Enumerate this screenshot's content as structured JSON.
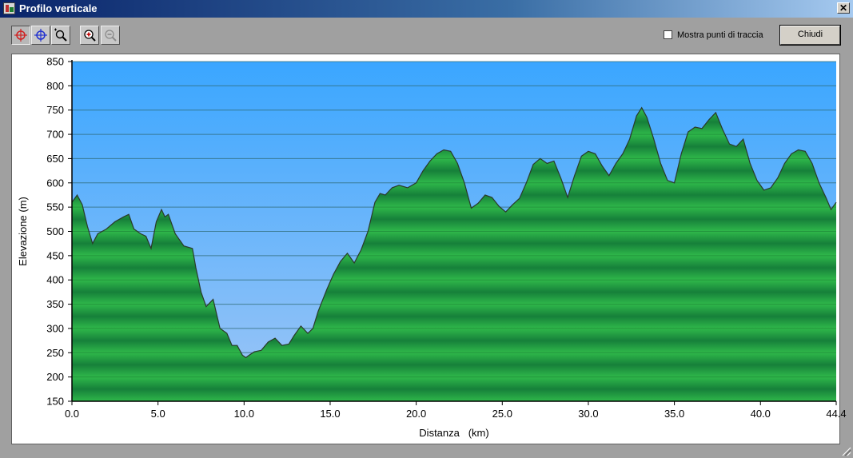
{
  "window": {
    "title": "Profilo verticale",
    "close_glyph": "✕"
  },
  "toolbar": {
    "tools": [
      {
        "name": "cursor-red-crosshair-icon",
        "pressed": true
      },
      {
        "name": "cursor-blue-crosshair-icon",
        "pressed": false
      },
      {
        "name": "zoom-window-icon",
        "pressed": false
      },
      {
        "name": "zoom-in-icon",
        "pressed": false
      },
      {
        "name": "zoom-out-icon",
        "pressed": false,
        "disabled": true
      }
    ],
    "checkbox_label": "Mostra punti di traccia",
    "checkbox_checked": false,
    "close_label": "Chiudi"
  },
  "colors": {
    "sky_top": "#3aa6ff",
    "sky_bottom": "#9ec6f6",
    "terrain_light": "#2fb84a",
    "terrain_dark": "#16803a",
    "outline": "#2a3a2a"
  },
  "chart_data": {
    "type": "area",
    "xlabel": "Distanza   (km)",
    "ylabel": "Elevazione (m)",
    "xlim": [
      0,
      44.4
    ],
    "ylim": [
      150,
      850
    ],
    "xticks": [
      0,
      5,
      10,
      15,
      20,
      25,
      30,
      35,
      40,
      44.4
    ],
    "xtick_labels": [
      "0.0",
      "5.0",
      "10.0",
      "15.0",
      "20.0",
      "25.0",
      "30.0",
      "35.0",
      "40.0",
      "44.4"
    ],
    "yticks": [
      150,
      200,
      250,
      300,
      350,
      400,
      450,
      500,
      550,
      600,
      650,
      700,
      750,
      800,
      850
    ],
    "grid": true,
    "series": [
      {
        "x": [
          0,
          0.3,
          0.6,
          0.9,
          1.2,
          1.5,
          2.0,
          2.5,
          3.0,
          3.3,
          3.6,
          4.0,
          4.3,
          4.6,
          4.9,
          5.2,
          5.4,
          5.6,
          6.0,
          6.5,
          7.0,
          7.2,
          7.5,
          7.8,
          8.2,
          8.6,
          9.0,
          9.3,
          9.6,
          9.9,
          10.1,
          10.3,
          10.6,
          11.0,
          11.4,
          11.8,
          12.2,
          12.6,
          12.9,
          13.3,
          13.7,
          14.0,
          14.3,
          14.8,
          15.2,
          15.6,
          16.0,
          16.4,
          16.8,
          17.2,
          17.6,
          17.9,
          18.2,
          18.6,
          19.0,
          19.5,
          20.0,
          20.4,
          20.8,
          21.2,
          21.6,
          22.0,
          22.4,
          22.8,
          23.2,
          23.6,
          24.0,
          24.4,
          24.8,
          25.2,
          25.6,
          26.0,
          26.4,
          26.8,
          27.2,
          27.6,
          28.0,
          28.4,
          28.8,
          29.2,
          29.6,
          30.0,
          30.4,
          30.8,
          31.2,
          31.6,
          32.0,
          32.4,
          32.8,
          33.1,
          33.4,
          33.8,
          34.2,
          34.6,
          35.0,
          35.4,
          35.8,
          36.2,
          36.6,
          37.0,
          37.4,
          37.8,
          38.2,
          38.6,
          39.0,
          39.4,
          39.8,
          40.2,
          40.6,
          41.0,
          41.4,
          41.8,
          42.2,
          42.6,
          43.0,
          43.4,
          43.8,
          44.1,
          44.4
        ],
        "y": [
          560,
          575,
          555,
          510,
          475,
          495,
          505,
          520,
          530,
          535,
          505,
          495,
          490,
          465,
          520,
          545,
          530,
          535,
          495,
          470,
          465,
          425,
          375,
          345,
          360,
          300,
          290,
          265,
          265,
          245,
          240,
          245,
          252,
          255,
          272,
          280,
          265,
          268,
          285,
          305,
          290,
          300,
          335,
          380,
          412,
          438,
          455,
          435,
          462,
          500,
          560,
          578,
          575,
          590,
          595,
          590,
          600,
          625,
          645,
          660,
          668,
          665,
          640,
          600,
          548,
          558,
          575,
          570,
          552,
          540,
          555,
          568,
          600,
          638,
          650,
          640,
          645,
          610,
          570,
          615,
          655,
          665,
          660,
          635,
          615,
          640,
          660,
          690,
          738,
          755,
          735,
          690,
          640,
          605,
          600,
          660,
          705,
          715,
          712,
          730,
          745,
          710,
          680,
          675,
          690,
          640,
          605,
          585,
          590,
          610,
          640,
          660,
          668,
          665,
          640,
          600,
          570,
          545,
          560
        ]
      }
    ]
  }
}
